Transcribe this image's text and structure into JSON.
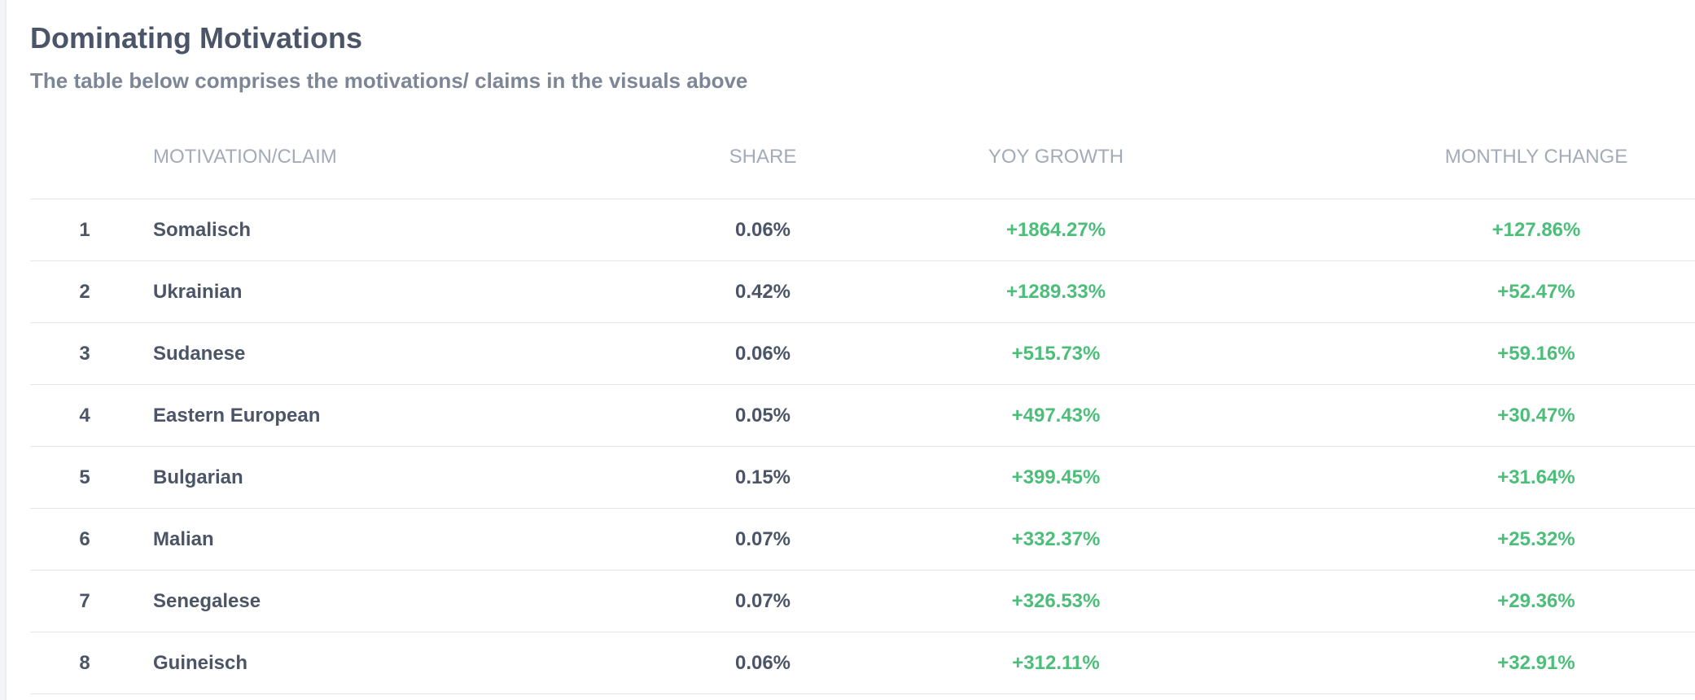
{
  "title": "Dominating Motivations",
  "subtitle": "The table below comprises the motivations/ claims in the visuals above",
  "colors": {
    "heading": "#4b5567",
    "muted": "#7d8696",
    "header": "#a3abb8",
    "positive": "#4cbe79",
    "divider": "#e3e6ea"
  },
  "table": {
    "headers": {
      "rank": "",
      "name": "MOTIVATION/CLAIM",
      "share": "SHARE",
      "yoy": "YOY GROWTH",
      "monthly": "MONTHLY CHANGE"
    },
    "rows": [
      {
        "rank": "1",
        "name": "Somalisch",
        "share": "0.06%",
        "yoy": "+1864.27%",
        "monthly": "+127.86%"
      },
      {
        "rank": "2",
        "name": "Ukrainian",
        "share": "0.42%",
        "yoy": "+1289.33%",
        "monthly": "+52.47%"
      },
      {
        "rank": "3",
        "name": "Sudanese",
        "share": "0.06%",
        "yoy": "+515.73%",
        "monthly": "+59.16%"
      },
      {
        "rank": "4",
        "name": "Eastern European",
        "share": "0.05%",
        "yoy": "+497.43%",
        "monthly": "+30.47%"
      },
      {
        "rank": "5",
        "name": "Bulgarian",
        "share": "0.15%",
        "yoy": "+399.45%",
        "monthly": "+31.64%"
      },
      {
        "rank": "6",
        "name": "Malian",
        "share": "0.07%",
        "yoy": "+332.37%",
        "monthly": "+25.32%"
      },
      {
        "rank": "7",
        "name": "Senegalese",
        "share": "0.07%",
        "yoy": "+326.53%",
        "monthly": "+29.36%"
      },
      {
        "rank": "8",
        "name": "Guineisch",
        "share": "0.06%",
        "yoy": "+312.11%",
        "monthly": "+32.91%"
      }
    ]
  }
}
